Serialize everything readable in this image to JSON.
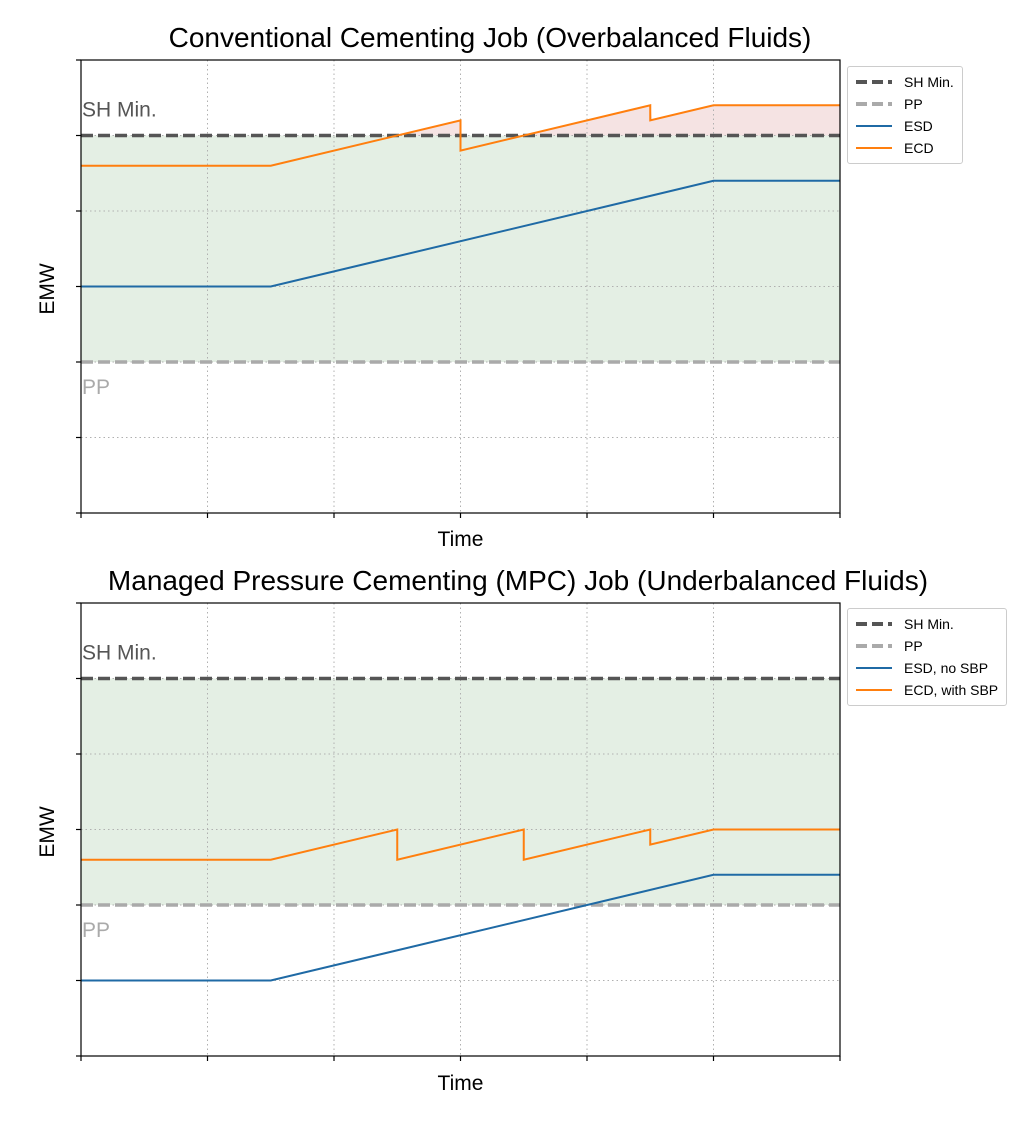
{
  "colors": {
    "sh_min": "#555555",
    "pp": "#aaaaaa",
    "esd": "#1f6aa5",
    "ecd": "#ff7f0e",
    "safe_fill": "#e4efe4",
    "over_fill": "#f5e3e3"
  },
  "chart_data": [
    {
      "type": "line",
      "title": "Conventional Cementing Job (Overbalanced Fluids)",
      "xlabel": "Time",
      "ylabel": "EMW",
      "xlim": [
        0,
        6
      ],
      "ylim": [
        0,
        6
      ],
      "grid": true,
      "legend_position": "outside-top-right",
      "reference_lines": [
        {
          "name": "SH Min.",
          "y": 5,
          "label": "SH Min.",
          "style": "dashed"
        },
        {
          "name": "PP",
          "y": 2,
          "label": "PP",
          "style": "dashed"
        }
      ],
      "series": [
        {
          "name": "ESD",
          "x": [
            0,
            1.5,
            5,
            6
          ],
          "y": [
            3,
            3,
            4.4,
            4.4
          ]
        },
        {
          "name": "ECD",
          "x": [
            0,
            1.5,
            3,
            3,
            4.5,
            4.5,
            5,
            6
          ],
          "y": [
            4.6,
            4.6,
            5.2,
            4.8,
            5.4,
            5.2,
            5.4,
            5.4
          ]
        }
      ]
    },
    {
      "type": "line",
      "title": "Managed Pressure Cementing (MPC) Job (Underbalanced Fluids)",
      "xlabel": "Time",
      "ylabel": "EMW",
      "xlim": [
        0,
        6
      ],
      "ylim": [
        0,
        6
      ],
      "grid": true,
      "legend_position": "outside-top-right",
      "reference_lines": [
        {
          "name": "SH Min.",
          "y": 5,
          "label": "SH Min.",
          "style": "dashed"
        },
        {
          "name": "PP",
          "y": 2,
          "label": "PP",
          "style": "dashed"
        }
      ],
      "series": [
        {
          "name": "ESD, no SBP",
          "x": [
            0,
            1.5,
            5,
            6
          ],
          "y": [
            1,
            1,
            2.4,
            2.4
          ]
        },
        {
          "name": "ECD, with SBP",
          "x": [
            0,
            1.5,
            2.5,
            2.5,
            3.5,
            3.5,
            4.5,
            4.5,
            5,
            6
          ],
          "y": [
            2.6,
            2.6,
            3,
            2.6,
            3,
            2.6,
            3,
            2.8,
            3,
            3
          ]
        }
      ]
    }
  ]
}
